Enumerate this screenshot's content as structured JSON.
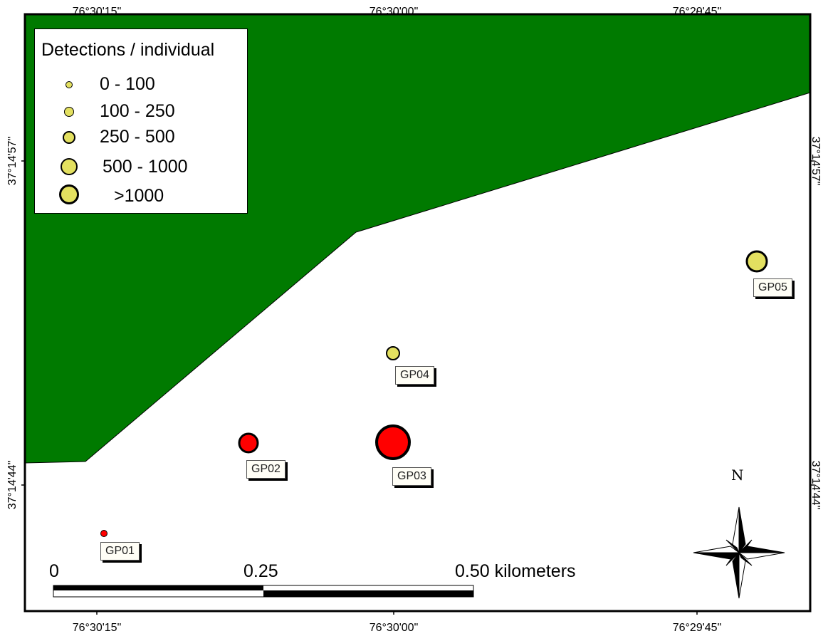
{
  "coordinate_labels": {
    "top": [
      "76°30'15\"",
      "76°30'00\"",
      "76°29'45\""
    ],
    "bottom": [
      "76°30'15\"",
      "76°30'00\"",
      "76°29'45\""
    ],
    "left": [
      "37°14'57\"",
      "37°14'44\""
    ],
    "right": [
      "37°14'57\"",
      "37°14'44\""
    ]
  },
  "colors": {
    "land": "#007a00",
    "water": "#ffffff",
    "detection_fill": "#e3e060",
    "site_high_fill": "#ff0000",
    "frame": "#000000"
  },
  "legend": {
    "title": "Detections / individual",
    "classes": [
      {
        "label": "0 - 100",
        "symbol": "small-yellow-circle"
      },
      {
        "label": "100 - 250",
        "symbol": "yellow-circle"
      },
      {
        "label": "250 - 500",
        "symbol": "medium-yellow-circle"
      },
      {
        "label": "500 - 1000",
        "symbol": "large-yellow-circle"
      },
      {
        "label": ">1000",
        "symbol": "largest-yellow-circle"
      }
    ]
  },
  "sites": [
    {
      "id": "GP01",
      "color": "red"
    },
    {
      "id": "GP02",
      "color": "red"
    },
    {
      "id": "GP03",
      "color": "red"
    },
    {
      "id": "GP04",
      "color": "yellow"
    },
    {
      "id": "GP05",
      "color": "yellow"
    }
  ],
  "scale_bar": {
    "labels": [
      "0",
      "0.25",
      "0.50 kilometers"
    ]
  },
  "north_arrow": {
    "label": "N",
    "icon": "compass-rose-icon"
  }
}
